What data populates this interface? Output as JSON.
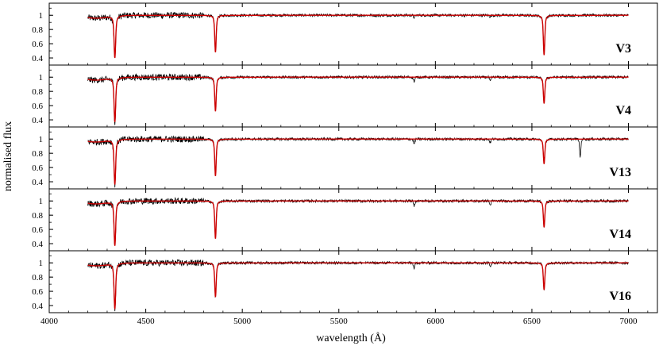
{
  "chart_data": {
    "type": "line",
    "xlabel": "wavelength (Å)",
    "ylabel": "normalised flux",
    "xlim": [
      4000,
      7150
    ],
    "x_ticks": [
      4000,
      4500,
      5000,
      5500,
      6000,
      6500,
      7000
    ],
    "y_ticks": [
      0.4,
      0.6,
      0.8,
      1
    ],
    "grid": false,
    "colors": {
      "observed": "#000000",
      "model": "#cc0000"
    },
    "panels": [
      {
        "label": "V3",
        "ylim": [
          0.3,
          1.17
        ],
        "lines": [
          {
            "center": 4340,
            "depth": 0.59,
            "width": 11
          },
          {
            "center": 4861,
            "depth": 0.52,
            "width": 10
          },
          {
            "center": 6563,
            "depth": 0.56,
            "width": 10
          }
        ],
        "extra_features": [
          {
            "center": 5890,
            "depth": 0.03
          },
          {
            "center": 6284,
            "depth": 0.02
          }
        ]
      },
      {
        "label": "V4",
        "ylim": [
          0.3,
          1.17
        ],
        "lines": [
          {
            "center": 4340,
            "depth": 0.62,
            "width": 11
          },
          {
            "center": 4861,
            "depth": 0.48,
            "width": 10
          },
          {
            "center": 6563,
            "depth": 0.37,
            "width": 10
          }
        ],
        "extra_features": [
          {
            "center": 5890,
            "depth": 0.06
          },
          {
            "center": 6284,
            "depth": 0.06
          }
        ]
      },
      {
        "label": "V13",
        "ylim": [
          0.3,
          1.17
        ],
        "lines": [
          {
            "center": 4340,
            "depth": 0.63,
            "width": 11
          },
          {
            "center": 4861,
            "depth": 0.52,
            "width": 10
          },
          {
            "center": 6563,
            "depth": 0.35,
            "width": 10
          }
        ],
        "extra_features": [
          {
            "center": 5890,
            "depth": 0.07
          },
          {
            "center": 6284,
            "depth": 0.05
          },
          {
            "center": 6750,
            "depth": 0.25
          }
        ]
      },
      {
        "label": "V14",
        "ylim": [
          0.3,
          1.17
        ],
        "lines": [
          {
            "center": 4340,
            "depth": 0.62,
            "width": 11
          },
          {
            "center": 4861,
            "depth": 0.53,
            "width": 10
          },
          {
            "center": 6563,
            "depth": 0.37,
            "width": 10
          }
        ],
        "extra_features": [
          {
            "center": 5890,
            "depth": 0.07
          },
          {
            "center": 6284,
            "depth": 0.06
          }
        ]
      },
      {
        "label": "V16",
        "ylim": [
          0.3,
          1.17
        ],
        "lines": [
          {
            "center": 4340,
            "depth": 0.64,
            "width": 11
          },
          {
            "center": 4861,
            "depth": 0.48,
            "width": 10
          },
          {
            "center": 6563,
            "depth": 0.38,
            "width": 10
          }
        ],
        "extra_features": [
          {
            "center": 5890,
            "depth": 0.08
          },
          {
            "center": 6284,
            "depth": 0.05
          }
        ]
      }
    ],
    "x_range_data": [
      4200,
      7000
    ]
  }
}
